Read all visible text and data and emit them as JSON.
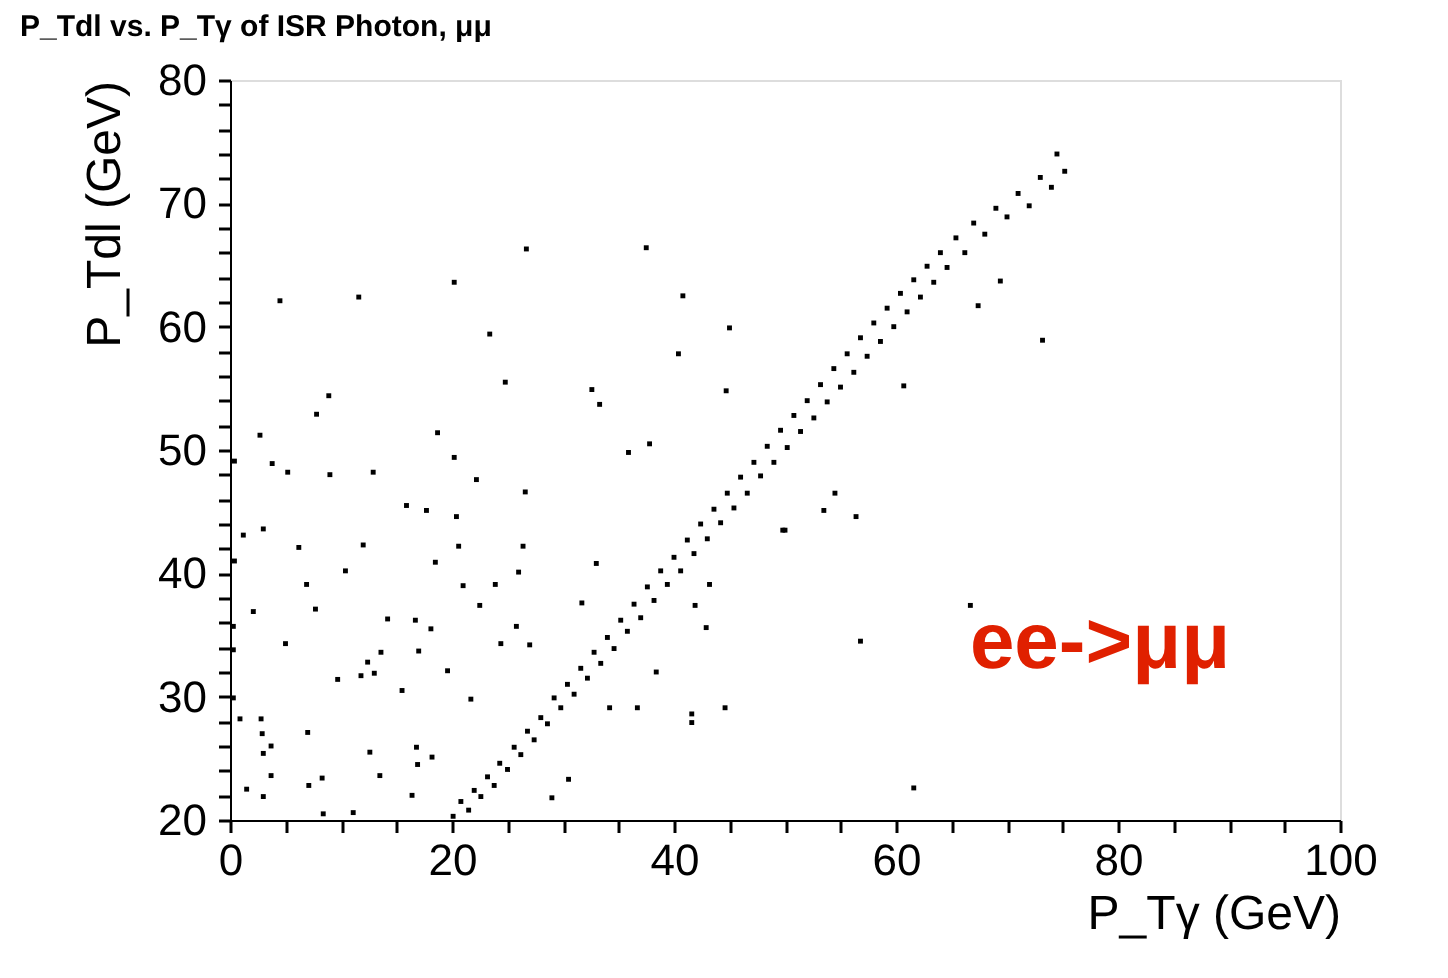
{
  "chart_data": {
    "type": "scatter",
    "title": "P_Tdl vs. P_Tγ of ISR Photon, μμ",
    "xlabel": "P_Tγ (GeV)",
    "ylabel": "P_Tdl (GeV)",
    "annotations": [
      "ee->μμ"
    ],
    "xlim": [
      0,
      100
    ],
    "ylim": [
      20,
      80
    ],
    "xticks": [
      0,
      {
        "value": 5,
        "label": null
      },
      {
        "value": 10,
        "label": null
      },
      {
        "value": 15,
        "label": null
      },
      20,
      {
        "value": 25,
        "label": null
      },
      {
        "value": 30,
        "label": null
      },
      {
        "value": 35,
        "label": null
      },
      40,
      {
        "value": 45,
        "label": null
      },
      {
        "value": 50,
        "label": null
      },
      {
        "value": 55,
        "label": null
      },
      60,
      {
        "value": 65,
        "label": null
      },
      {
        "value": 70,
        "label": null
      },
      {
        "value": 75,
        "label": null
      },
      80,
      {
        "value": 85,
        "label": null
      },
      {
        "value": 90,
        "label": null
      },
      {
        "value": 95,
        "label": null
      },
      100
    ],
    "yticks": [
      20,
      {
        "value": 22,
        "label": null
      },
      {
        "value": 24,
        "label": null
      },
      {
        "value": 26,
        "label": null
      },
      {
        "value": 28,
        "label": null
      },
      30,
      {
        "value": 32,
        "label": null
      },
      {
        "value": 34,
        "label": null
      },
      {
        "value": 36,
        "label": null
      },
      {
        "value": 38,
        "label": null
      },
      40,
      {
        "value": 42,
        "label": null
      },
      {
        "value": 44,
        "label": null
      },
      {
        "value": 46,
        "label": null
      },
      {
        "value": 48,
        "label": null
      },
      50,
      {
        "value": 52,
        "label": null
      },
      {
        "value": 54,
        "label": null
      },
      {
        "value": 56,
        "label": null
      },
      {
        "value": 58,
        "label": null
      },
      60,
      {
        "value": 62,
        "label": null
      },
      {
        "value": 64,
        "label": null
      },
      {
        "value": 66,
        "label": null
      },
      {
        "value": 68,
        "label": null
      },
      70,
      {
        "value": 72,
        "label": null
      },
      {
        "value": 74,
        "label": null
      },
      {
        "value": 76,
        "label": null
      },
      {
        "value": 78,
        "label": null
      },
      80
    ],
    "grid": false,
    "legend": false,
    "marker": "square",
    "series": [
      {
        "color": "#000000",
        "x": [
          20.1,
          20.8,
          21.5,
          22.0,
          22.6,
          23.2,
          23.8,
          24.3,
          25.0,
          25.6,
          26.2,
          26.8,
          27.4,
          28.0,
          28.6,
          29.2,
          29.8,
          30.4,
          31.0,
          31.6,
          32.2,
          32.8,
          33.4,
          34.0,
          34.6,
          35.2,
          35.8,
          36.4,
          37.0,
          37.6,
          38.2,
          38.8,
          39.4,
          40.0,
          40.6,
          41.2,
          41.8,
          42.4,
          43.0,
          43.6,
          44.2,
          44.8,
          45.4,
          46.0,
          46.6,
          47.2,
          47.8,
          48.4,
          49.0,
          49.6,
          50.2,
          50.8,
          51.4,
          52.0,
          52.6,
          53.2,
          53.8,
          54.4,
          55.0,
          55.6,
          56.2,
          56.8,
          57.4,
          58.0,
          58.6,
          59.2,
          59.8,
          60.4,
          61.0,
          61.6,
          62.2,
          62.8,
          63.4,
          64.0,
          64.6,
          65.4,
          66.2,
          67.0,
          68.0,
          69.0,
          70.0,
          71.0,
          72.0,
          73.0,
          74.0,
          74.5,
          75.2,
          4.5,
          11.6,
          20.2,
          26.7,
          37.5,
          40.8,
          23.4,
          24.8,
          7.8,
          8.9,
          2.7,
          0.4,
          3.8,
          5.2,
          9.0,
          12.9,
          18.7,
          20.2,
          32.6,
          33.3,
          35.9,
          37.8,
          45.0,
          40.4,
          44.7,
          26.6,
          22.2,
          15.9,
          17.7,
          20.4,
          3.0,
          1.2,
          6.2,
          12.0,
          0.4,
          10.4,
          6.9,
          18.5,
          20.6,
          21.0,
          23.9,
          26.4,
          26.0,
          7.7,
          2.1,
          0.3,
          14.2,
          16.7,
          18.1,
          22.5,
          5.0,
          0.3,
          17.0,
          13.6,
          12.4,
          24.4,
          25.8,
          27.0,
          9.7,
          11.8,
          13.0,
          15.5,
          19.6,
          21.7,
          0.3,
          0.9,
          2.8,
          7.0,
          2.9,
          3.0,
          3.7,
          12.6,
          16.8,
          16.9,
          18.2,
          13.5,
          8.3,
          1.5,
          3.7,
          7.1,
          3.0,
          8.4,
          11.1,
          16.4,
          29.0,
          30.5,
          34.2,
          36.7,
          38.4,
          42.9,
          41.9,
          43.2,
          41.6,
          41.6,
          44.6,
          50.0,
          31.7,
          33.0,
          73.2,
          56.4,
          53.5,
          54.5,
          49.8,
          66.7,
          56.8,
          61.6,
          60.7,
          67.4,
          69.4
        ],
        "values": [
          20.3,
          21.5,
          20.8,
          22.4,
          21.9,
          23.5,
          22.8,
          24.6,
          24.1,
          25.9,
          25.3,
          27.2,
          26.5,
          28.3,
          27.8,
          29.9,
          29.1,
          31.0,
          30.2,
          32.3,
          31.5,
          33.6,
          32.7,
          34.8,
          33.9,
          36.2,
          35.3,
          37.5,
          36.4,
          38.9,
          37.8,
          40.2,
          39.1,
          41.3,
          40.2,
          42.7,
          41.6,
          44.0,
          42.8,
          45.2,
          44.1,
          46.5,
          45.3,
          47.8,
          46.5,
          49.0,
          47.9,
          50.3,
          49.0,
          51.6,
          50.2,
          52.8,
          51.5,
          54.0,
          52.6,
          55.3,
          53.9,
          56.6,
          55.1,
          57.8,
          56.3,
          59.1,
          57.6,
          60.3,
          58.8,
          61.5,
          60.0,
          62.7,
          61.2,
          63.8,
          62.4,
          64.9,
          63.6,
          66.0,
          64.8,
          67.2,
          66.0,
          68.4,
          67.5,
          69.6,
          68.9,
          70.8,
          69.8,
          72.1,
          71.3,
          74.0,
          72.6,
          62.1,
          62.4,
          63.6,
          66.3,
          66.4,
          62.5,
          59.4,
          55.5,
          52.9,
          54.4,
          51.2,
          49.1,
          48.9,
          48.2,
          48.0,
          48.2,
          51.4,
          49.4,
          54.9,
          53.7,
          49.8,
          50.5,
          59.9,
          57.8,
          54.8,
          46.6,
          47.6,
          45.5,
          45.1,
          44.6,
          43.6,
          43.1,
          42.1,
          42.3,
          41.0,
          40.2,
          39.1,
          40.9,
          42.2,
          39.0,
          39.1,
          42.2,
          40.1,
          37.1,
          36.9,
          35.7,
          36.3,
          36.2,
          35.5,
          37.4,
          34.3,
          33.8,
          33.7,
          33.6,
          32.8,
          34.3,
          35.7,
          34.2,
          31.4,
          31.7,
          31.9,
          30.5,
          32.1,
          29.8,
          29.9,
          28.2,
          28.2,
          27.1,
          27.0,
          25.4,
          26.0,
          25.5,
          25.9,
          24.5,
          25.1,
          23.6,
          23.4,
          22.5,
          23.6,
          22.8,
          21.9,
          20.5,
          20.6,
          22.0,
          21.8,
          23.3,
          29.1,
          29.1,
          32.0,
          35.6,
          37.4,
          39.1,
          28.6,
          27.9,
          29.1,
          43.5,
          37.6,
          40.8,
          58.9,
          44.6,
          45.1,
          46.5,
          43.5,
          37.4,
          34.5,
          22.6,
          55.2,
          61.7,
          63.7
        ]
      }
    ]
  }
}
